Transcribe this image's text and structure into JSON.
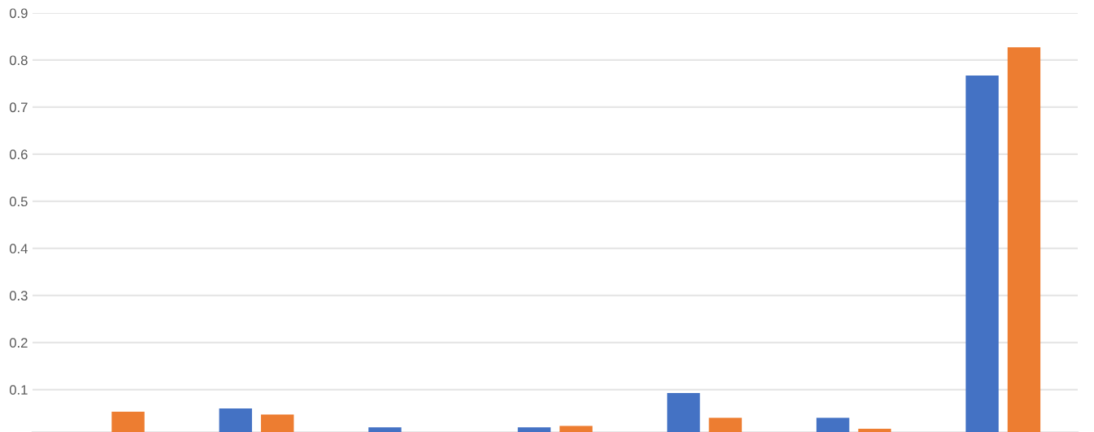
{
  "chart_data": {
    "type": "bar",
    "categories": [
      null,
      null,
      null,
      null,
      null,
      null,
      null
    ],
    "series": [
      {
        "color": "#4472c4",
        "values": [
          null,
          0.06,
          0.02,
          0.02,
          0.093,
          0.04,
          0.767
        ]
      },
      {
        "color": "#ed7d31",
        "values": [
          0.053,
          0.047,
          null,
          0.023,
          0.04,
          0.017,
          0.827
        ]
      }
    ],
    "ylim": [
      0.01,
      0.9
    ],
    "yticks": [
      0.1,
      0.2,
      0.3,
      0.4,
      0.5,
      0.6,
      0.7,
      0.8,
      0.9
    ],
    "grid": "y",
    "tick_labels": "y",
    "legend": false
  }
}
